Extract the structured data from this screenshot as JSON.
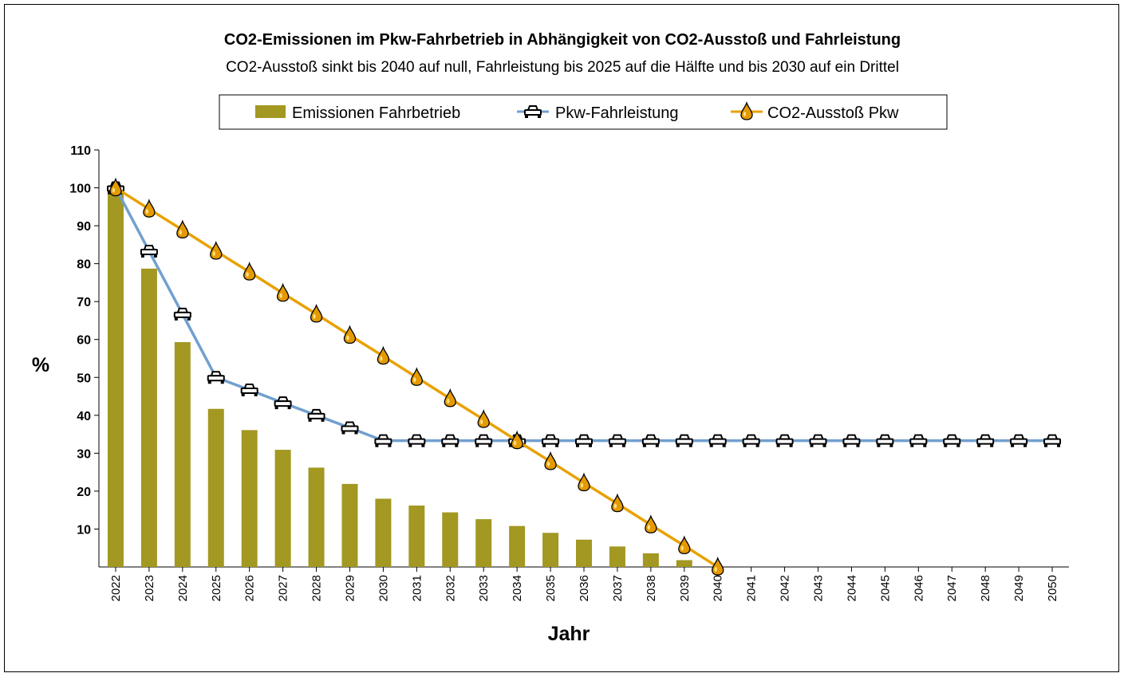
{
  "chart_data": {
    "type": "bar",
    "title": "CO2-Emissionen im Pkw-Fahrbetrieb in Abhängigkeit von CO2-Ausstoß und Fahrleistung",
    "subtitle": "CO2-Ausstoß sinkt bis 2040 auf null, Fahrleistung bis 2025 auf die Hälfte und bis 2030 auf ein Drittel",
    "xlabel": "Jahr",
    "ylabel": "%",
    "ylim": [
      0,
      110
    ],
    "yticks": [
      10,
      20,
      30,
      40,
      50,
      60,
      70,
      80,
      90,
      100,
      110
    ],
    "legend_position": "top-center",
    "categories": [
      "2022",
      "2023",
      "2024",
      "2025",
      "2026",
      "2027",
      "2028",
      "2029",
      "2030",
      "2031",
      "2032",
      "2033",
      "2034",
      "2035",
      "2036",
      "2037",
      "2038",
      "2039",
      "2040",
      "2041",
      "2042",
      "2043",
      "2044",
      "2045",
      "2046",
      "2047",
      "2048",
      "2049",
      "2050"
    ],
    "series": [
      {
        "name": "Emissionen Fahrbetrieb",
        "type": "bar",
        "color": "#a29822",
        "values": [
          100,
          78.7,
          59.3,
          41.7,
          36.1,
          30.9,
          26.2,
          21.9,
          18.0,
          16.2,
          14.4,
          12.6,
          10.8,
          9.0,
          7.2,
          5.4,
          3.6,
          1.8,
          0,
          0,
          0,
          0,
          0,
          0,
          0,
          0,
          0,
          0,
          0
        ]
      },
      {
        "name": "Pkw-Fahrleistung",
        "type": "line",
        "color": "#729fcf",
        "marker": "car-icon",
        "values": [
          100,
          83.3,
          66.7,
          50,
          46.7,
          43.3,
          40,
          36.7,
          33.3,
          33.3,
          33.3,
          33.3,
          33.3,
          33.3,
          33.3,
          33.3,
          33.3,
          33.3,
          33.3,
          33.3,
          33.3,
          33.3,
          33.3,
          33.3,
          33.3,
          33.3,
          33.3,
          33.3,
          33.3
        ]
      },
      {
        "name": "CO2-Ausstoß Pkw",
        "type": "line",
        "color": "#e8a202",
        "marker": "fuel-drop-icon",
        "values": [
          100,
          94.4,
          88.9,
          83.3,
          77.8,
          72.2,
          66.7,
          61.1,
          55.6,
          50,
          44.4,
          38.9,
          33.3,
          27.8,
          22.2,
          16.7,
          11.1,
          5.6,
          0,
          null,
          null,
          null,
          null,
          null,
          null,
          null,
          null,
          null,
          null
        ]
      }
    ]
  }
}
